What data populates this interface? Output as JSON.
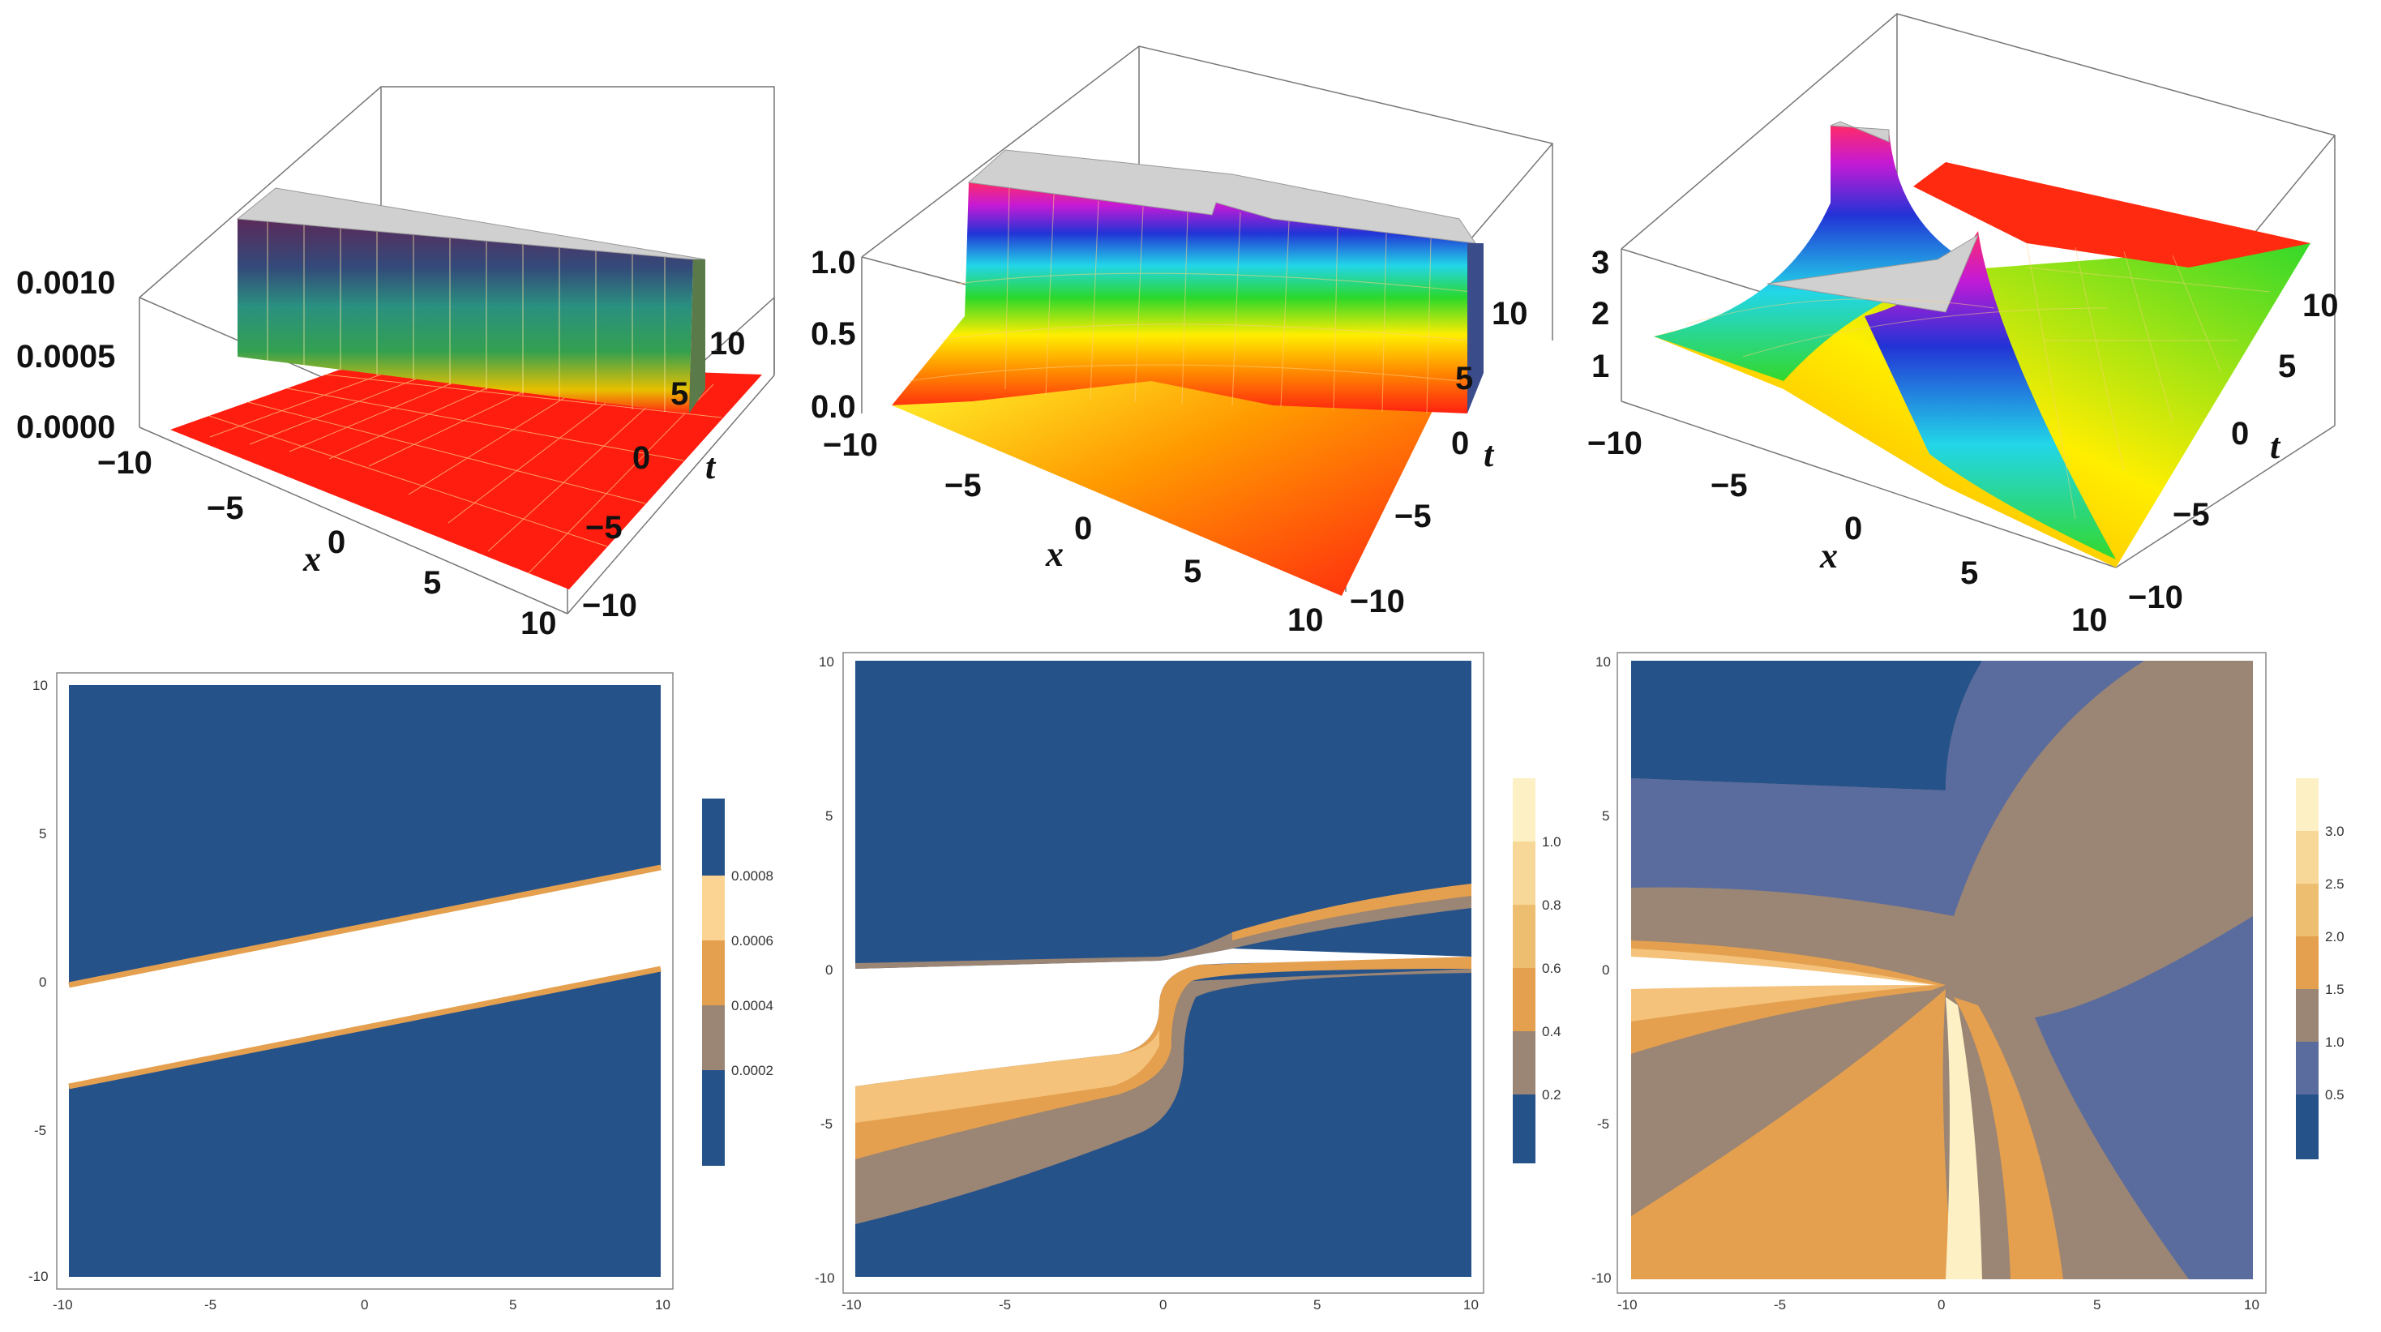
{
  "colors": {
    "contour_navy": "#26528a",
    "contour_slate": "#5a6c9e",
    "contour_taupe": "#9b8574",
    "contour_orange": "#e4a04f",
    "contour_light_orange": "#eebe70",
    "contour_cream": "#fbe7b0",
    "surface_red": "#ff1d0f",
    "surface_cap": "#d0d0d0"
  },
  "chart_data": [
    {
      "id": "panel-a-3d",
      "type": "surface3d",
      "title": "",
      "xlabel": "x",
      "ylabel": "t",
      "x_ticks": [
        "−10",
        "−5",
        "0",
        "5",
        "10"
      ],
      "t_ticks": [
        "−10",
        "−5",
        "0",
        "5",
        "10"
      ],
      "z_ticks": [
        "0.0000",
        "0.0005",
        "0.0010"
      ],
      "xlim": [
        -10,
        10
      ],
      "tlim": [
        -10,
        10
      ],
      "zlim": [
        0,
        0.0012
      ],
      "feature": "one-dimensional ridge along x ≈ 0.35t, amplitude clipped at 0.0010"
    },
    {
      "id": "panel-b-3d",
      "type": "surface3d",
      "xlabel": "x",
      "ylabel": "t",
      "x_ticks": [
        "−10",
        "−5",
        "0",
        "5",
        "10"
      ],
      "t_ticks": [
        "−10",
        "−5",
        "0",
        "5",
        "10"
      ],
      "z_ticks": [
        "0.0",
        "0.5",
        "1.0"
      ],
      "xlim": [
        -10,
        10
      ],
      "tlim": [
        -10,
        10
      ],
      "zlim": [
        0,
        1.2
      ],
      "feature": "kink-shaped wall bending near x = 0, clipped at 1.0"
    },
    {
      "id": "panel-c-3d",
      "type": "surface3d",
      "xlabel": "x",
      "ylabel": "t",
      "x_ticks": [
        "−10",
        "−5",
        "0",
        "5",
        "10"
      ],
      "t_ticks": [
        "−10",
        "−5",
        "0",
        "5",
        "10"
      ],
      "z_ticks": [
        "1",
        "2",
        "3"
      ],
      "xlim": [
        -10,
        10
      ],
      "tlim": [
        -10,
        10
      ],
      "zlim": [
        0,
        3.4
      ],
      "feature": "X-shaped interaction of two waves crossing at origin"
    },
    {
      "id": "panel-d-contour",
      "type": "contour",
      "xlim": [
        -10,
        10
      ],
      "ylim": [
        -10,
        10
      ],
      "x_ticks": [
        "-10",
        "-5",
        "0",
        "5",
        "10"
      ],
      "y_ticks": [
        "10",
        "5",
        "0",
        "-5",
        "-10"
      ],
      "legend": [
        "0.0002",
        "0.0004",
        "0.0006",
        "0.0008"
      ],
      "bands": [
        {
          "name": "band-upper-edge",
          "x": [
            -10,
            10
          ],
          "y": [
            -0.3,
            3.7
          ]
        },
        {
          "name": "band-lower-edge",
          "x": [
            -10,
            10
          ],
          "y": [
            -3.7,
            0.2
          ]
        }
      ]
    },
    {
      "id": "panel-e-contour",
      "type": "contour",
      "xlim": [
        -10,
        10
      ],
      "ylim": [
        -10,
        10
      ],
      "x_ticks": [
        "-10",
        "-5",
        "0",
        "5",
        "10"
      ],
      "y_ticks": [
        "10",
        "5",
        "0",
        "-5",
        "-10"
      ],
      "legend": [
        "0.2",
        "0.4",
        "0.6",
        "0.8",
        "1.0"
      ]
    },
    {
      "id": "panel-f-contour",
      "type": "contour",
      "xlim": [
        -10,
        10
      ],
      "ylim": [
        -10,
        10
      ],
      "x_ticks": [
        "-10",
        "-5",
        "0",
        "5",
        "10"
      ],
      "y_ticks": [
        "10",
        "5",
        "0",
        "-5",
        "-10"
      ],
      "legend": [
        "0.5",
        "1.0",
        "1.5",
        "2.0",
        "2.5",
        "3.0"
      ]
    }
  ]
}
